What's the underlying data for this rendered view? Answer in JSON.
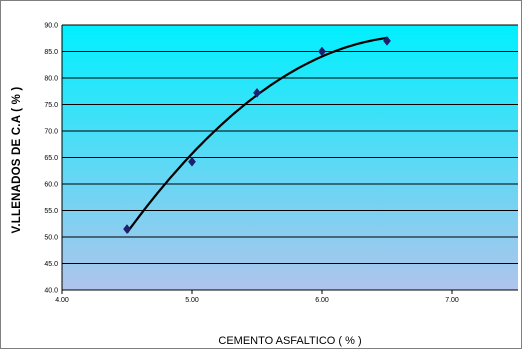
{
  "chart_data": {
    "type": "line",
    "title": "",
    "xlabel": "CEMENTO ASFALTICO ( % )",
    "ylabel": "V.LLENADOS DE C.A ( % )",
    "xlim": [
      4.0,
      7.5
    ],
    "ylim": [
      40.0,
      90.0
    ],
    "x_ticks": [
      "4.00",
      "5.00",
      "6.00",
      "7.00"
    ],
    "y_ticks": [
      "40.0",
      "45.0",
      "50.0",
      "55.0",
      "60.0",
      "65.0",
      "70.0",
      "75.0",
      "80.0",
      "85.0",
      "90.0"
    ],
    "grid": true,
    "legend": "none",
    "series": [
      {
        "x": [
          4.5,
          5.0,
          5.5,
          6.0,
          6.5
        ],
        "y": [
          51.5,
          64.2,
          77.2,
          85.0,
          87.0
        ],
        "marker": "diamond",
        "color": "#1f1f6e"
      }
    ],
    "trendline": {
      "type": "polynomial",
      "color": "#000000"
    },
    "background_gradient": [
      "#00f0ff",
      "#b0c4ec"
    ]
  }
}
